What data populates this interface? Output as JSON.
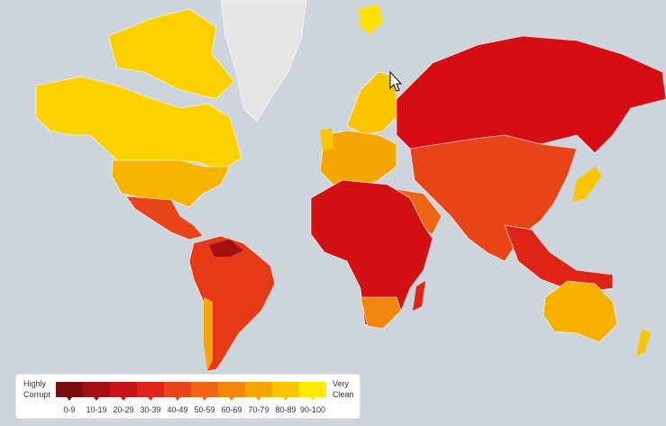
{
  "legend": {
    "left_label": [
      "Highly",
      "Corrupt"
    ],
    "right_label": [
      "Very",
      "Clean"
    ],
    "bins": [
      {
        "label": "0-9",
        "color": "#7a0d0e"
      },
      {
        "label": "10-19",
        "color": "#a3100f"
      },
      {
        "label": "20-29",
        "color": "#c91217"
      },
      {
        "label": "30-39",
        "color": "#de2417"
      },
      {
        "label": "40-49",
        "color": "#e8441a"
      },
      {
        "label": "50-59",
        "color": "#ee6614"
      },
      {
        "label": "60-69",
        "color": "#f2870d"
      },
      {
        "label": "70-79",
        "color": "#f6a604"
      },
      {
        "label": "80-89",
        "color": "#fbc600"
      },
      {
        "label": "90-100",
        "color": "#ffea00"
      }
    ]
  }
}
